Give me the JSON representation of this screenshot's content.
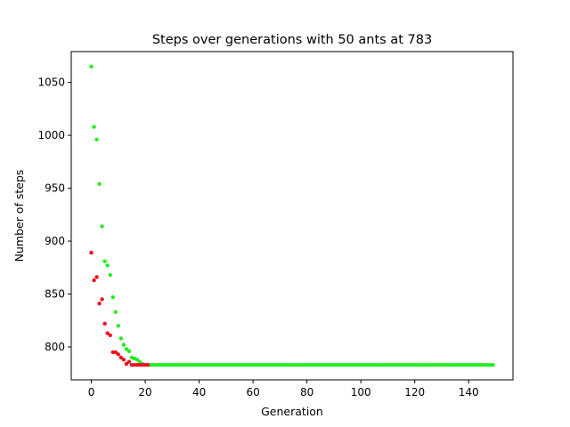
{
  "chart_data": {
    "type": "scatter",
    "title": "Steps over generations with 50 ants at 783",
    "xlabel": "Generation",
    "ylabel": "Number of steps",
    "xlim": [
      -7.45,
      156.45
    ],
    "ylim": [
      768.9,
      1079.1
    ],
    "xticks": [
      0,
      20,
      40,
      60,
      80,
      100,
      120,
      140
    ],
    "yticks": [
      800,
      850,
      900,
      950,
      1000,
      1050
    ],
    "grid": false,
    "legend": "none",
    "colors": {
      "green": "#22ee22",
      "red": "#ee1122"
    },
    "series": [
      {
        "color": "#22ee22",
        "x_range": [
          0,
          149
        ],
        "values": [
          1065,
          1008,
          996,
          954,
          914,
          881,
          877,
          868,
          847,
          833,
          820,
          808,
          802,
          798,
          796,
          790,
          789,
          788,
          786,
          784,
          783
        ],
        "tail_value": 783
      },
      {
        "color": "#ee1122",
        "x": [
          0,
          1,
          2,
          3,
          4,
          5,
          6,
          7,
          8,
          9,
          10,
          11,
          12,
          13,
          14,
          15,
          16,
          17,
          18,
          19,
          20,
          21
        ],
        "values": [
          889,
          863,
          866,
          841,
          845,
          822,
          813,
          811,
          795,
          795,
          793,
          790,
          788,
          784,
          786,
          783,
          783,
          783,
          783,
          783,
          783,
          783
        ]
      }
    ]
  }
}
